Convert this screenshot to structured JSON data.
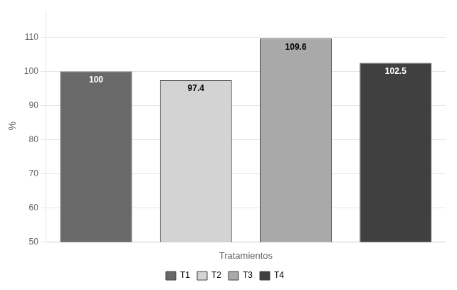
{
  "chart_data": {
    "type": "bar",
    "categories": [
      "T1",
      "T2",
      "T3",
      "T4"
    ],
    "values": [
      100,
      97.4,
      109.6,
      102.5
    ],
    "colors": [
      "#696969",
      "#d3d3d3",
      "#a9a9a9",
      "#404040"
    ],
    "xlabel": "Tratamientos",
    "ylabel": "%",
    "ylim": [
      50,
      118
    ],
    "yticks": [
      50,
      60,
      70,
      80,
      90,
      100,
      110
    ],
    "grid": true,
    "legend": "bottom",
    "data_labels": true,
    "tick_labels": "y"
  }
}
